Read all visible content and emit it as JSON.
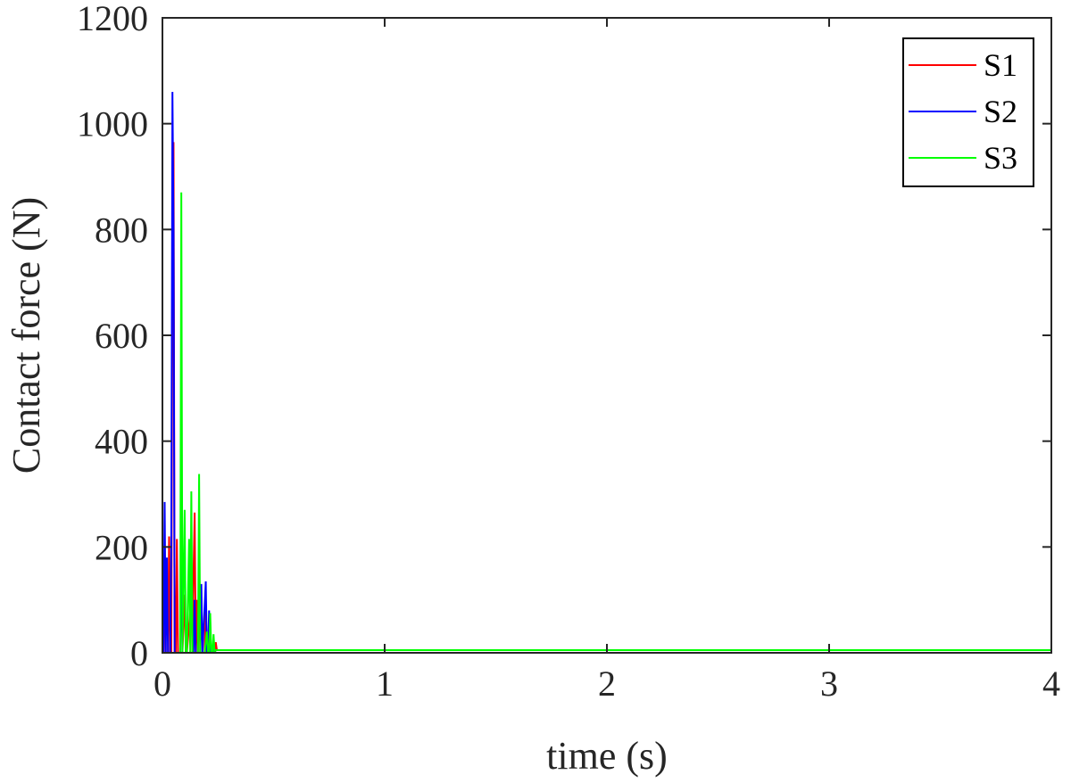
{
  "chart_data": {
    "type": "line",
    "xlabel": "time (s)",
    "ylabel": "Contact force (N)",
    "xlim": [
      0,
      4
    ],
    "ylim": [
      0,
      1200
    ],
    "xticks": [
      "0",
      "1",
      "2",
      "3",
      "4"
    ],
    "yticks": [
      "0",
      "200",
      "400",
      "600",
      "800",
      "1000",
      "1200"
    ],
    "grid": false,
    "legend_position": "top-right",
    "series": [
      {
        "name": "S1",
        "color": "#ff0000",
        "x": [
          0,
          0.005,
          0.01,
          0.015,
          0.02,
          0.025,
          0.03,
          0.035,
          0.04,
          0.045,
          0.05,
          0.055,
          0.06,
          0.065,
          0.07,
          0.09,
          0.1,
          0.105,
          0.11,
          0.13,
          0.135,
          0.14,
          0.145,
          0.15,
          0.155,
          0.16,
          0.165,
          0.17,
          0.19,
          0.195,
          0.2,
          0.205,
          0.21,
          0.215,
          0.22,
          0.23,
          0.235,
          0.24,
          0.245,
          0.25,
          4
        ],
        "y": [
          0,
          0,
          180,
          0,
          0,
          0,
          220,
          0,
          0,
          720,
          965,
          0,
          0,
          215,
          0,
          0,
          110,
          0,
          0,
          105,
          0,
          150,
          265,
          0,
          100,
          0,
          150,
          0,
          0,
          80,
          0,
          0,
          40,
          0,
          0,
          15,
          0,
          20,
          5,
          5,
          5
        ]
      },
      {
        "name": "S2",
        "color": "#0000ff",
        "x": [
          0,
          0.005,
          0.01,
          0.015,
          0.02,
          0.025,
          0.03,
          0.035,
          0.04,
          0.045,
          0.05,
          0.055,
          0.06,
          0.065,
          0.075,
          0.08,
          0.085,
          0.09,
          0.095,
          0.1,
          0.105,
          0.14,
          0.145,
          0.15,
          0.17,
          0.175,
          0.18,
          0.195,
          0.2,
          0.205,
          0.21,
          0.215,
          0.22,
          0.23,
          0.235,
          0.24,
          4
        ],
        "y": [
          0,
          0,
          285,
          0,
          180,
          0,
          0,
          0,
          220,
          1060,
          800,
          0,
          0,
          0,
          0,
          0,
          215,
          0,
          0,
          0,
          0,
          0,
          100,
          0,
          0,
          130,
          0,
          135,
          0,
          0,
          80,
          0,
          0,
          10,
          0,
          5,
          5
        ]
      },
      {
        "name": "S3",
        "color": "#00ff00",
        "x": [
          0,
          0.08,
          0.085,
          0.09,
          0.1,
          0.105,
          0.11,
          0.12,
          0.125,
          0.13,
          0.135,
          0.14,
          0.15,
          0.155,
          0.16,
          0.165,
          0.17,
          0.175,
          0.18,
          0.185,
          0.19,
          0.2,
          0.205,
          0.21,
          0.215,
          0.22,
          0.225,
          0.23,
          0.235,
          0.24,
          0.25,
          4
        ],
        "y": [
          0,
          0,
          870,
          0,
          270,
          0,
          0,
          215,
          0,
          305,
          0,
          0,
          0,
          0,
          0,
          338,
          0,
          0,
          0,
          0,
          0,
          40,
          0,
          0,
          75,
          0,
          0,
          35,
          0,
          5,
          5,
          5
        ]
      }
    ]
  }
}
